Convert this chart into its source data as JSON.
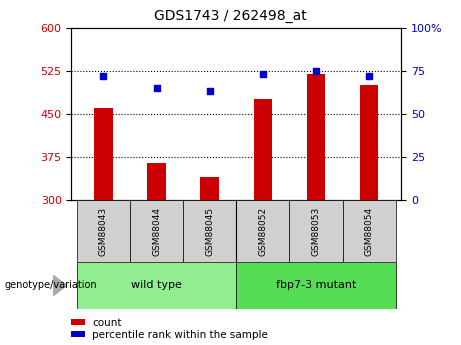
{
  "title": "GDS1743 / 262498_at",
  "categories": [
    "GSM88043",
    "GSM88044",
    "GSM88045",
    "GSM88052",
    "GSM88053",
    "GSM88054"
  ],
  "bar_values": [
    460,
    365,
    340,
    475,
    520,
    500
  ],
  "bar_base": 300,
  "percentile_values": [
    72,
    65,
    63,
    73,
    75,
    72
  ],
  "bar_color": "#cc0000",
  "dot_color": "#0000cc",
  "left_ylim": [
    300,
    600
  ],
  "right_ylim": [
    0,
    100
  ],
  "left_yticks": [
    300,
    375,
    450,
    525,
    600
  ],
  "right_yticks": [
    0,
    25,
    50,
    75,
    100
  ],
  "right_yticklabels": [
    "0",
    "25",
    "50",
    "75",
    "100%"
  ],
  "hlines": [
    375,
    450,
    525
  ],
  "groups": [
    {
      "label": "wild type",
      "indices": [
        0,
        1,
        2
      ],
      "color": "#90ee90"
    },
    {
      "label": "fbp7-3 mutant",
      "indices": [
        3,
        4,
        5
      ],
      "color": "#55dd55"
    }
  ],
  "group_label": "genotype/variation",
  "legend_items": [
    {
      "label": "count",
      "color": "#cc0000"
    },
    {
      "label": "percentile rank within the sample",
      "color": "#0000cc"
    }
  ],
  "tick_label_color_left": "#cc0000",
  "tick_label_color_right": "#0000cc",
  "bar_width": 0.35
}
